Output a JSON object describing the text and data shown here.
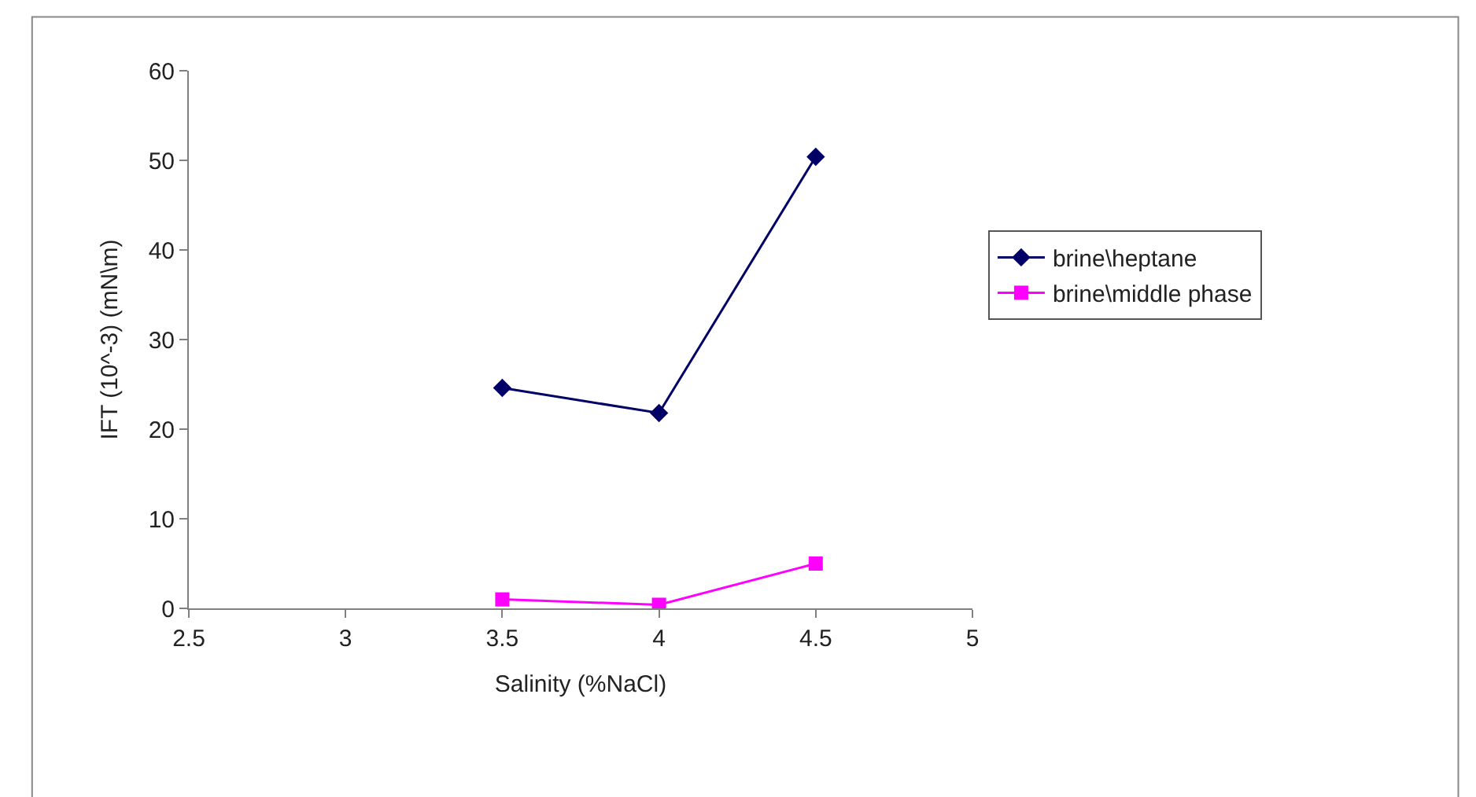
{
  "chart_data": {
    "type": "line",
    "xlabel": "Salinity (%NaCl)",
    "ylabel": "IFT (10^-3) (mN\\m)",
    "x": [
      3.5,
      4,
      4.5
    ],
    "series": [
      {
        "name": "brine\\heptane",
        "color": "#000066",
        "marker": "diamond",
        "values": [
          24.6,
          21.8,
          50.4
        ]
      },
      {
        "name": "brine\\middle phase",
        "color": "#ff00ff",
        "marker": "square",
        "values": [
          1.0,
          0.4,
          5.0
        ]
      }
    ],
    "xlim": [
      2.5,
      5
    ],
    "xticks": [
      2.5,
      3,
      3.5,
      4,
      4.5,
      5
    ],
    "ylim": [
      0,
      60
    ],
    "yticks": [
      0,
      10,
      20,
      30,
      40,
      50,
      60
    ],
    "grid": false,
    "legend": "right",
    "line_style": "solid"
  }
}
